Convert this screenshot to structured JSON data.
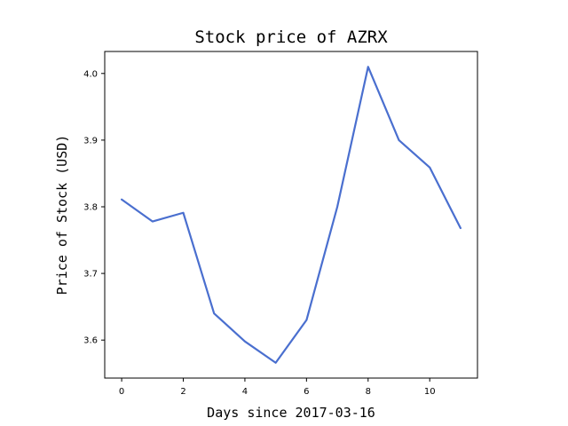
{
  "chart_data": {
    "type": "line",
    "title": "Stock price of AZRX",
    "xlabel": "Days since 2017-03-16",
    "ylabel": "Price of Stock (USD)",
    "x": [
      0,
      1,
      2,
      3,
      4,
      5,
      6,
      7,
      8,
      9,
      10,
      11
    ],
    "series": [
      {
        "values": [
          3.811,
          3.778,
          3.791,
          3.64,
          3.598,
          3.566,
          3.63,
          3.8,
          4.01,
          3.9,
          3.859,
          3.768
        ],
        "color": "#4a6fcf"
      }
    ],
    "xlim": [
      -0.55,
      11.55
    ],
    "ylim": [
      3.543,
      4.033
    ],
    "xticks": [
      0,
      2,
      4,
      6,
      8,
      10
    ],
    "xtick_labels": [
      "0",
      "2",
      "4",
      "6",
      "8",
      "10"
    ],
    "yticks": [
      3.6,
      3.7,
      3.8,
      3.9,
      4.0
    ],
    "ytick_labels": [
      "3.6",
      "3.7",
      "3.8",
      "3.9",
      "4.0"
    ],
    "grid": false,
    "legend": "none"
  }
}
